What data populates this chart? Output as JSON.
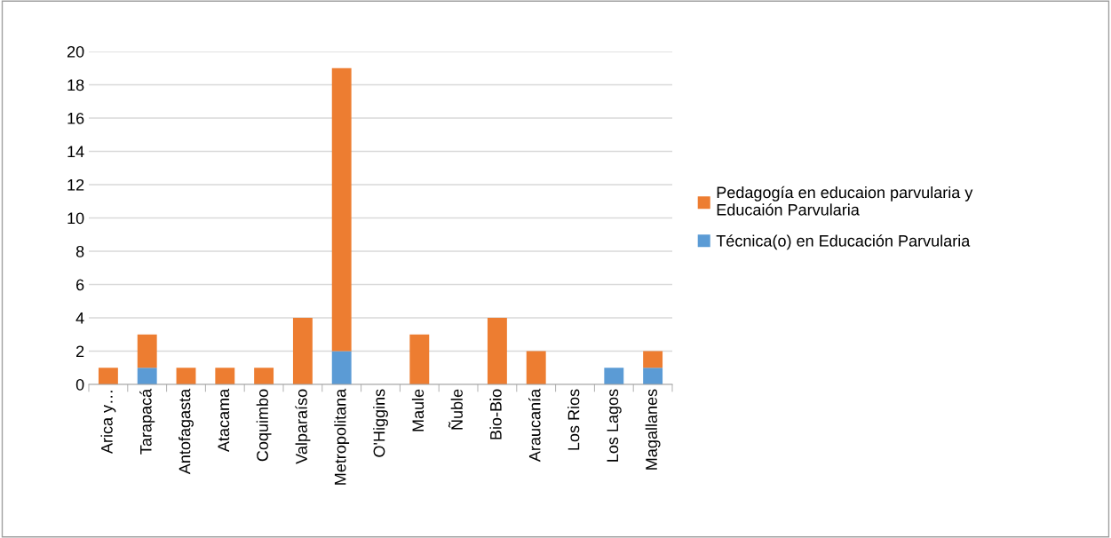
{
  "chart_data": {
    "type": "bar",
    "stacked": true,
    "categories": [
      "Arica y…",
      "Tarapacá",
      "Antofagasta",
      "Atacama",
      "Coquimbo",
      "Valparaíso",
      "Metropolitana",
      "O'Higgins",
      "Maule",
      "Ñuble",
      "Bio-Bio",
      "Araucanía",
      "Los Rios",
      "Los Lagos",
      "Magallanes"
    ],
    "series": [
      {
        "name": "Técnica(o) en Educación Parvularia",
        "color": "#5b9bd5",
        "values": [
          0,
          1,
          0,
          0,
          0,
          0,
          2,
          0,
          0,
          0,
          0,
          0,
          0,
          1,
          1
        ]
      },
      {
        "name": "Pedagogía en educaion parvularia y\nEducaión Parvularia",
        "color": "#ed7d31",
        "values": [
          1,
          2,
          1,
          1,
          1,
          4,
          17,
          0,
          3,
          0,
          4,
          2,
          0,
          0,
          1
        ]
      }
    ],
    "ylim": [
      0,
      20
    ],
    "yticks": [
      0,
      2,
      4,
      6,
      8,
      10,
      12,
      14,
      16,
      18,
      20
    ],
    "grid": "y",
    "legend": "right"
  }
}
